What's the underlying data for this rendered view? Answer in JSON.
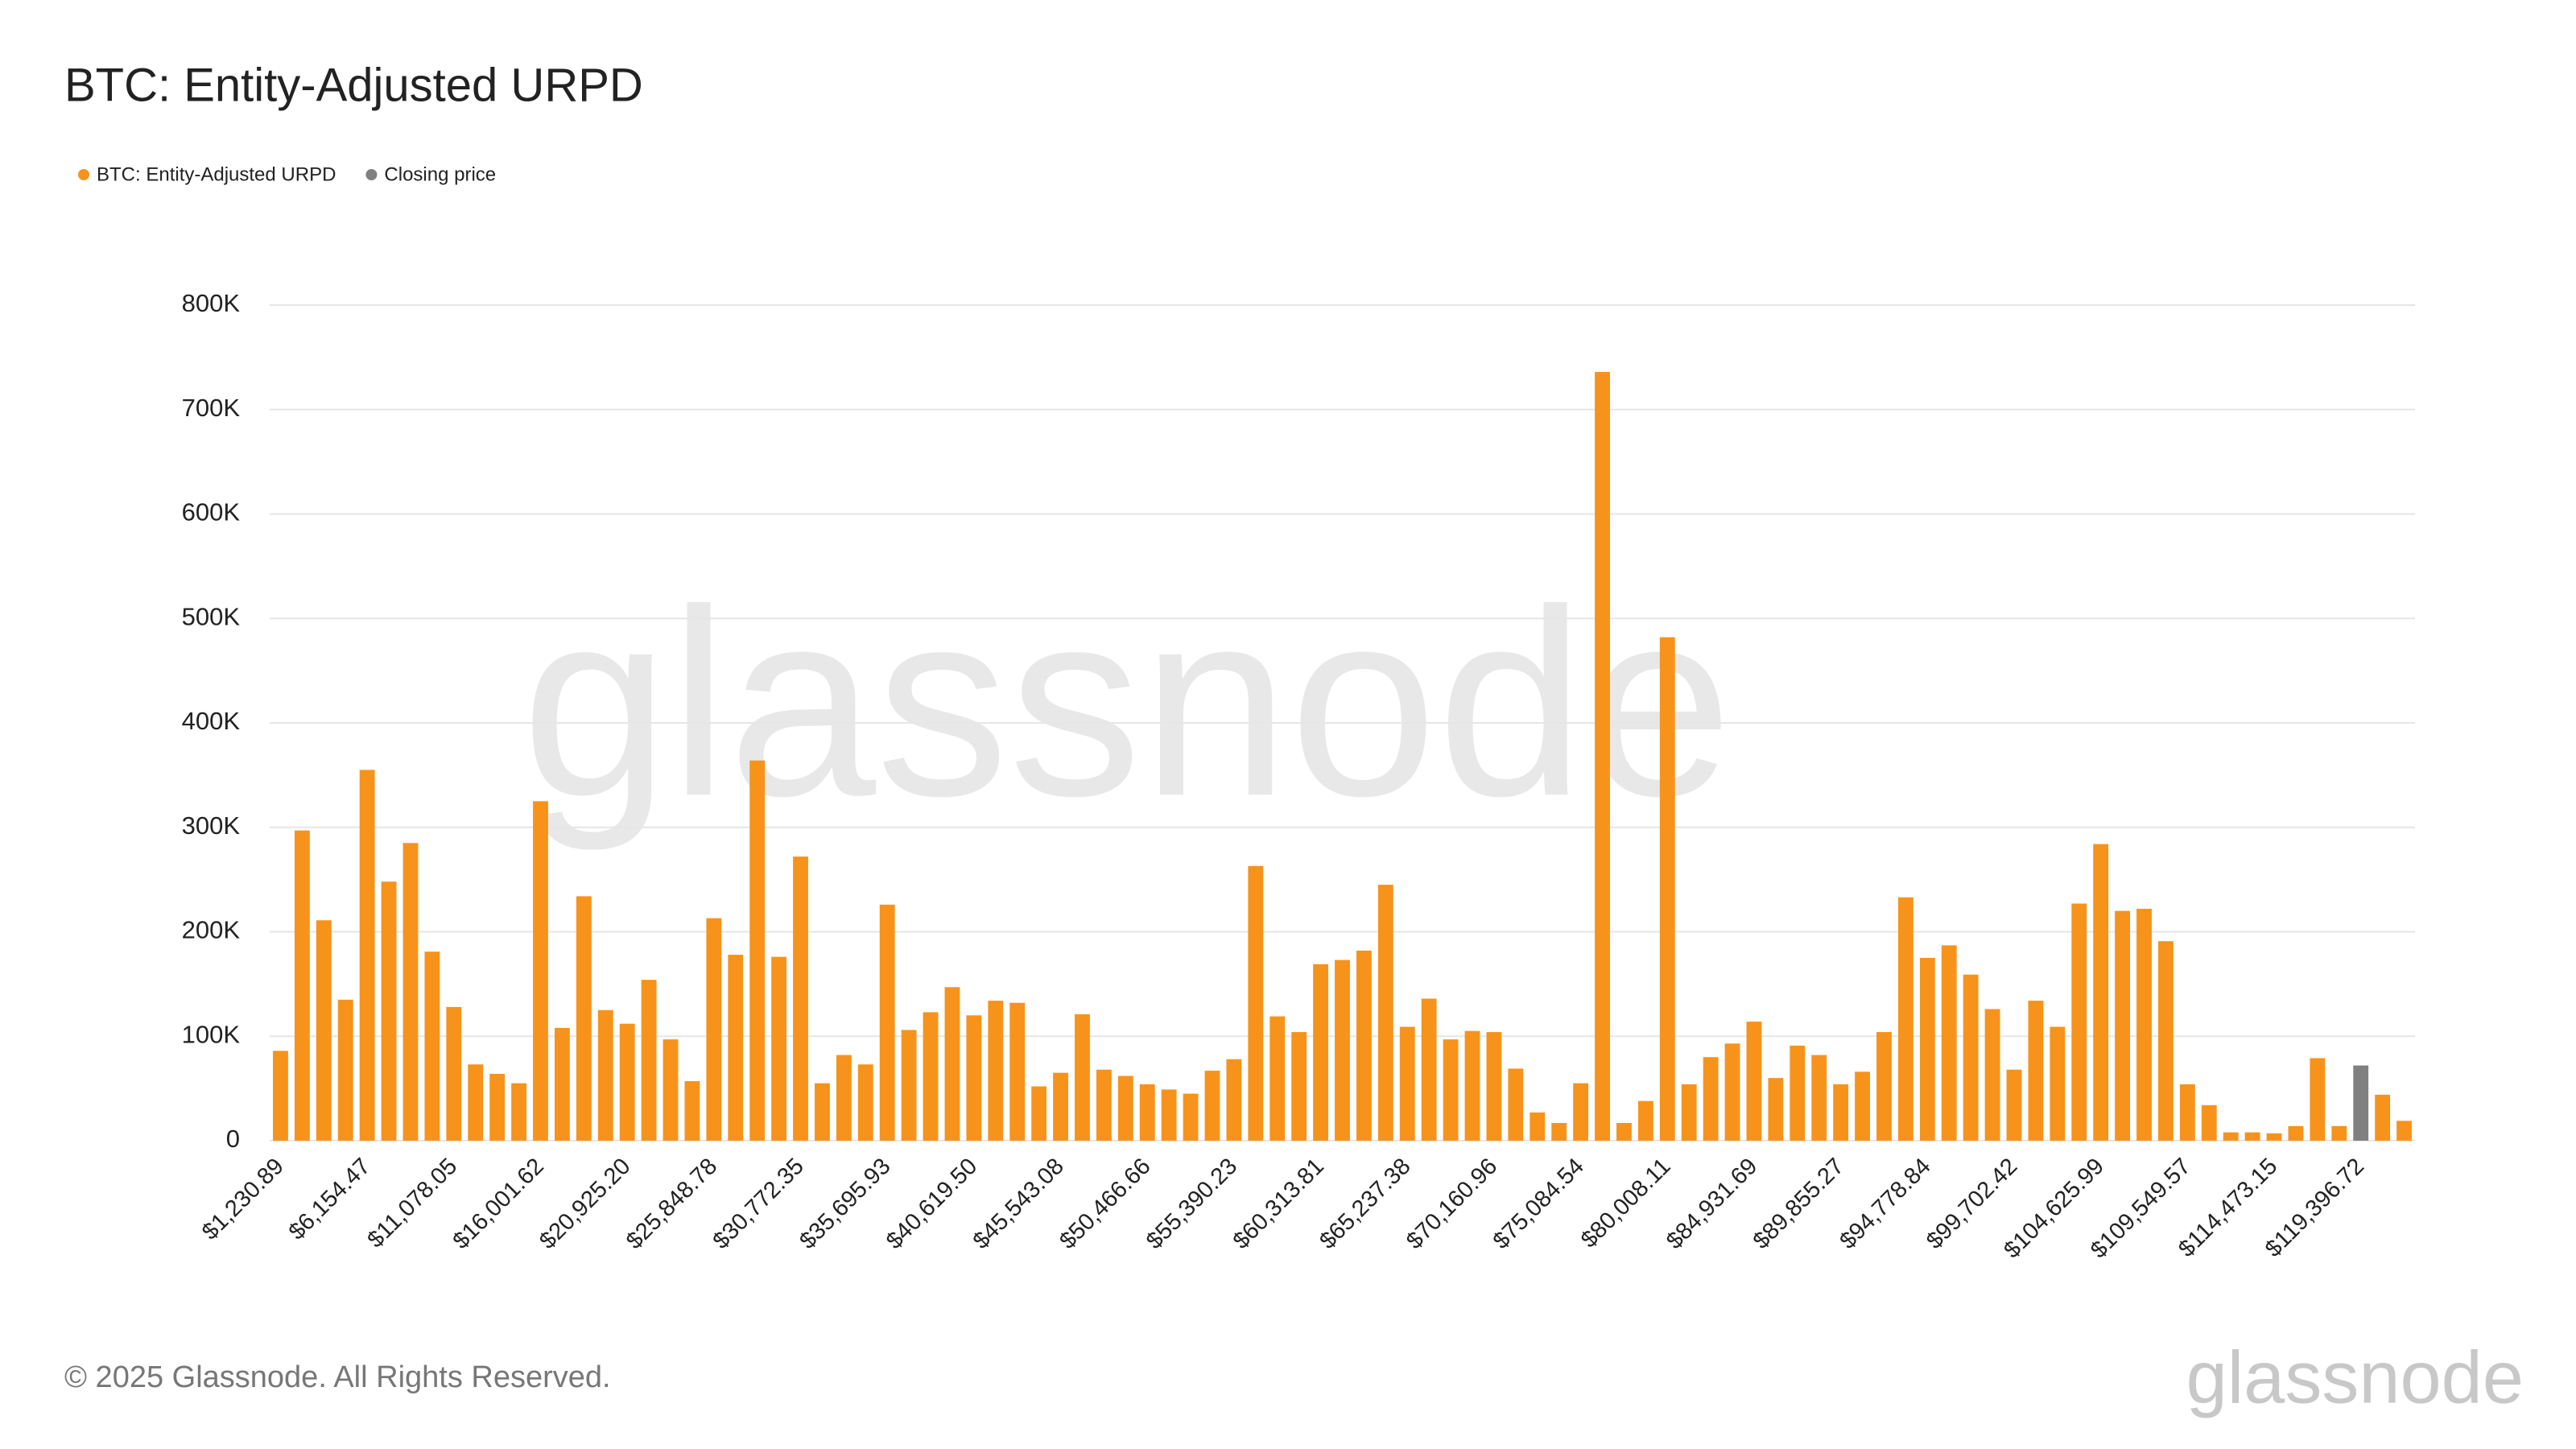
{
  "chart_data": {
    "type": "bar",
    "title": "BTC: Entity-Adjusted URPD",
    "footer": "© 2025 Glassnode. All Rights Reserved.",
    "watermark": "glassnode",
    "categories": [
      "$1,230.89",
      null,
      null,
      null,
      "$6,154.47",
      null,
      null,
      null,
      "$11,078.05",
      null,
      null,
      null,
      "$16,001.62",
      null,
      null,
      null,
      "$20,925.20",
      null,
      null,
      null,
      "$25,848.78",
      null,
      null,
      null,
      "$30,772.35",
      null,
      null,
      null,
      "$35,695.93",
      null,
      null,
      null,
      "$40,619.50",
      null,
      null,
      null,
      "$45,543.08",
      null,
      null,
      null,
      "$50,466.66",
      null,
      null,
      null,
      "$55,390.23",
      null,
      null,
      null,
      "$60,313.81",
      null,
      null,
      null,
      "$65,237.38",
      null,
      null,
      null,
      "$70,160.96",
      null,
      null,
      null,
      "$75,084.54",
      null,
      null,
      null,
      "$80,008.11",
      null,
      null,
      null,
      "$84,931.69",
      null,
      null,
      null,
      "$89,855.27",
      null,
      null,
      null,
      "$94,778.84",
      null,
      null,
      null,
      "$99,702.42",
      null,
      null,
      null,
      "$104,625.99",
      null,
      null,
      null,
      "$109,549.57",
      null,
      null,
      null,
      "$114,473.15",
      null,
      null,
      null,
      "$119,396.72",
      null,
      null
    ],
    "series": [
      {
        "name": "BTC: Entity-Adjusted URPD",
        "color": "#f7931a",
        "values": [
          86000,
          297000,
          211000,
          135000,
          355000,
          248000,
          285000,
          181000,
          128000,
          73000,
          64000,
          55000,
          325000,
          108000,
          234000,
          125000,
          112000,
          154000,
          97000,
          57000,
          213000,
          178000,
          364000,
          176000,
          272000,
          55000,
          82000,
          73000,
          226000,
          106000,
          123000,
          147000,
          120000,
          134000,
          132000,
          52000,
          65000,
          121000,
          68000,
          62000,
          54000,
          49000,
          45000,
          67000,
          78000,
          263000,
          119000,
          104000,
          169000,
          173000,
          182000,
          245000,
          109000,
          136000,
          97000,
          105000,
          104000,
          69000,
          27000,
          17000,
          55000,
          736000,
          17000,
          38000,
          482000,
          54000,
          80000,
          93000,
          114000,
          60000,
          91000,
          82000,
          54000,
          66000,
          104000,
          233000,
          175000,
          187000,
          159000,
          126000,
          68000,
          134000,
          109000,
          227000,
          284000,
          220000,
          222000,
          191000,
          54000,
          34000,
          8000,
          8000,
          7000,
          14000,
          79000,
          14000,
          null,
          44000,
          19000
        ]
      },
      {
        "name": "Closing price",
        "color": "#808080",
        "values": [
          null,
          null,
          null,
          null,
          null,
          null,
          null,
          null,
          null,
          null,
          null,
          null,
          null,
          null,
          null,
          null,
          null,
          null,
          null,
          null,
          null,
          null,
          null,
          null,
          null,
          null,
          null,
          null,
          null,
          null,
          null,
          null,
          null,
          null,
          null,
          null,
          null,
          null,
          null,
          null,
          null,
          null,
          null,
          null,
          null,
          null,
          null,
          null,
          null,
          null,
          null,
          null,
          null,
          null,
          null,
          null,
          null,
          null,
          null,
          null,
          null,
          null,
          null,
          null,
          null,
          null,
          null,
          null,
          null,
          null,
          null,
          null,
          null,
          null,
          null,
          null,
          null,
          null,
          null,
          null,
          null,
          null,
          null,
          null,
          null,
          null,
          null,
          null,
          null,
          null,
          null,
          null,
          null,
          null,
          null,
          null,
          72000,
          null,
          null
        ]
      }
    ],
    "ylim": [
      0,
      800000
    ],
    "yticks": [
      0,
      {
        "value": 100000,
        "label": "100K"
      },
      {
        "value": 200000,
        "label": "200K"
      },
      {
        "value": 300000,
        "label": "300K"
      },
      {
        "value": 400000,
        "label": "400K"
      },
      {
        "value": 500000,
        "label": "500K"
      },
      {
        "value": 600000,
        "label": "600K"
      },
      {
        "value": 700000,
        "label": "700K"
      },
      {
        "value": 800000,
        "label": "800K"
      }
    ],
    "grid": true
  }
}
